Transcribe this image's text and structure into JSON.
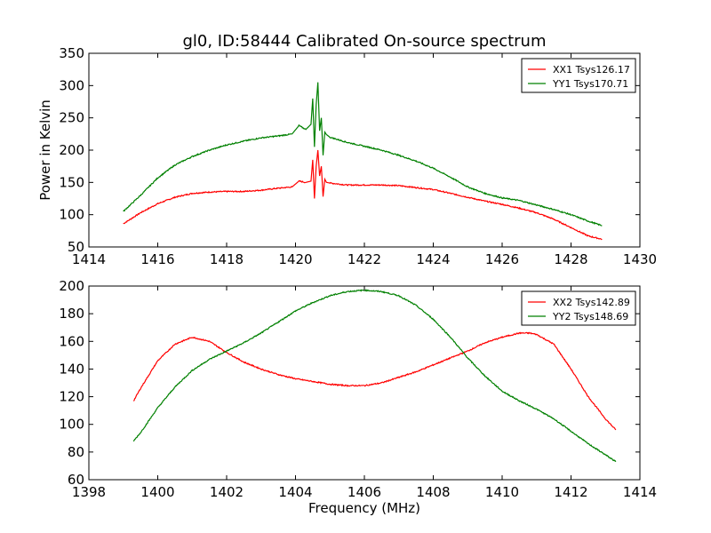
{
  "title": "gl0, ID:58444 Calibrated On-source spectrum",
  "chart_data": [
    {
      "type": "line",
      "ylabel": "Power in Kelvin",
      "xlabel": "",
      "xlim": [
        1414,
        1430
      ],
      "ylim": [
        50,
        350
      ],
      "xticks": [
        1414,
        1416,
        1418,
        1420,
        1422,
        1424,
        1426,
        1428,
        1430
      ],
      "yticks": [
        50,
        100,
        150,
        200,
        250,
        300,
        350
      ],
      "legend_position": "top-right",
      "series": [
        {
          "name": "XX1 Tsys126.17",
          "color": "#ff0000",
          "x": [
            1415.0,
            1415.5,
            1416.0,
            1416.5,
            1417.0,
            1417.5,
            1418.0,
            1418.5,
            1419.0,
            1419.5,
            1419.9,
            1420.1,
            1420.3,
            1420.45,
            1420.5,
            1420.55,
            1420.6,
            1420.65,
            1420.7,
            1420.75,
            1420.8,
            1420.85,
            1420.9,
            1421.0,
            1421.5,
            1422.0,
            1422.5,
            1423.0,
            1423.5,
            1424.0,
            1424.5,
            1425.0,
            1425.5,
            1426.0,
            1426.5,
            1427.0,
            1427.5,
            1428.0,
            1428.5,
            1428.9
          ],
          "y": [
            86,
            103,
            117,
            127,
            133,
            135,
            136,
            136,
            138,
            141,
            143,
            152,
            150,
            152,
            185,
            125,
            175,
            200,
            160,
            175,
            128,
            155,
            150,
            149,
            146,
            146,
            146,
            145,
            142,
            139,
            133,
            127,
            121,
            116,
            110,
            103,
            93,
            80,
            67,
            62
          ]
        },
        {
          "name": "YY1 Tsys170.71",
          "color": "#008000",
          "x": [
            1415.0,
            1415.5,
            1416.0,
            1416.5,
            1417.0,
            1417.5,
            1418.0,
            1418.5,
            1419.0,
            1419.5,
            1419.9,
            1420.1,
            1420.3,
            1420.45,
            1420.5,
            1420.55,
            1420.6,
            1420.65,
            1420.7,
            1420.75,
            1420.8,
            1420.85,
            1420.9,
            1421.0,
            1421.5,
            1422.0,
            1422.5,
            1423.0,
            1423.5,
            1424.0,
            1424.5,
            1425.0,
            1425.5,
            1426.0,
            1426.5,
            1427.0,
            1427.5,
            1428.0,
            1428.5,
            1428.9
          ],
          "y": [
            105,
            130,
            157,
            177,
            190,
            200,
            208,
            214,
            219,
            222,
            225,
            238,
            232,
            240,
            280,
            205,
            270,
            305,
            230,
            250,
            192,
            228,
            224,
            220,
            212,
            206,
            200,
            192,
            183,
            172,
            158,
            143,
            133,
            126,
            122,
            115,
            108,
            100,
            90,
            83
          ]
        }
      ]
    },
    {
      "type": "line",
      "ylabel": "",
      "xlabel": "Frequency (MHz)",
      "xlim": [
        1398,
        1414
      ],
      "ylim": [
        60,
        200
      ],
      "xticks": [
        1398,
        1400,
        1402,
        1404,
        1406,
        1408,
        1410,
        1412,
        1414
      ],
      "yticks": [
        60,
        80,
        100,
        120,
        140,
        160,
        180,
        200
      ],
      "legend_position": "top-right",
      "series": [
        {
          "name": "XX2 Tsys142.89",
          "color": "#ff0000",
          "x": [
            1399.3,
            1399.5,
            1400.0,
            1400.5,
            1401.0,
            1401.5,
            1402.0,
            1402.5,
            1403.0,
            1403.5,
            1404.0,
            1404.5,
            1405.0,
            1405.5,
            1406.0,
            1406.5,
            1407.0,
            1407.5,
            1408.0,
            1408.5,
            1409.0,
            1409.5,
            1410.0,
            1410.5,
            1410.8,
            1411.0,
            1411.5,
            1412.0,
            1412.5,
            1413.0,
            1413.3
          ],
          "y": [
            117,
            126,
            146,
            158,
            163,
            160,
            152,
            145,
            140,
            136,
            133,
            131,
            129,
            128,
            128,
            130,
            134,
            138,
            143,
            148,
            153,
            159,
            163,
            166,
            166,
            165,
            158,
            140,
            120,
            104,
            96
          ]
        },
        {
          "name": "YY2 Tsys148.69",
          "color": "#008000",
          "x": [
            1399.3,
            1399.5,
            1400.0,
            1400.5,
            1401.0,
            1401.5,
            1402.0,
            1402.5,
            1403.0,
            1403.5,
            1404.0,
            1404.5,
            1405.0,
            1405.5,
            1406.0,
            1406.5,
            1407.0,
            1407.5,
            1408.0,
            1408.5,
            1409.0,
            1409.5,
            1410.0,
            1410.5,
            1411.0,
            1411.5,
            1412.0,
            1412.5,
            1413.0,
            1413.3
          ],
          "y": [
            88,
            94,
            112,
            127,
            139,
            147,
            153,
            159,
            166,
            174,
            182,
            188,
            193,
            196,
            197,
            196,
            193,
            186,
            176,
            163,
            148,
            135,
            124,
            117,
            111,
            104,
            95,
            86,
            78,
            73
          ]
        }
      ]
    }
  ]
}
